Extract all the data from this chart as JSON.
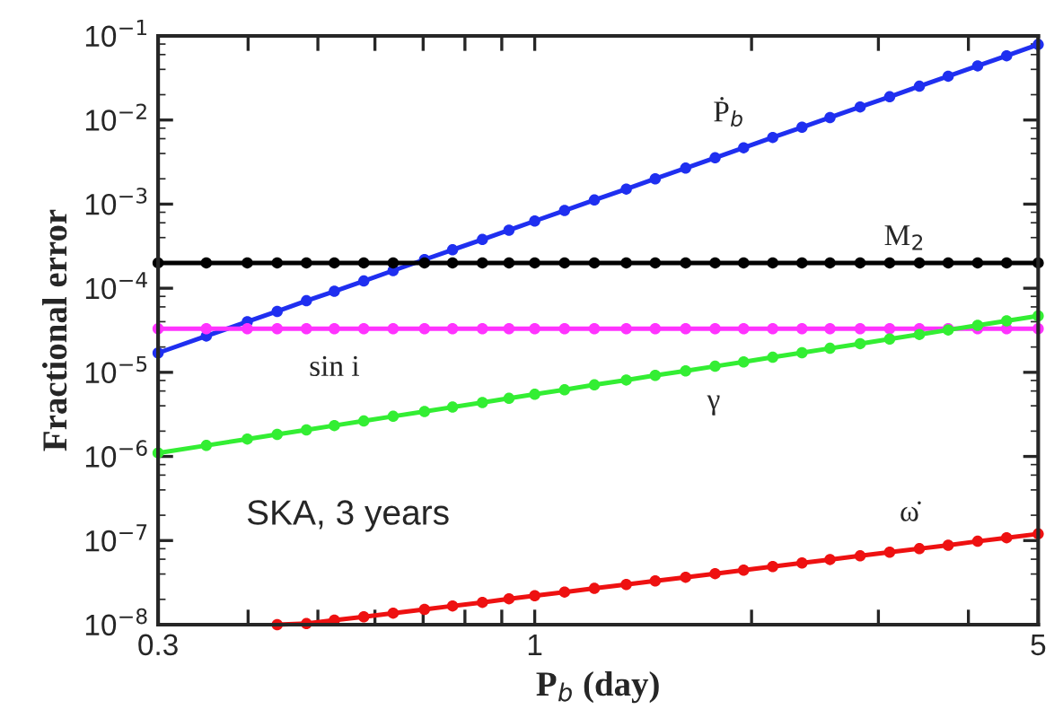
{
  "chart_data": {
    "type": "line",
    "xlabel": "P$_{b}$ (day)",
    "ylabel": "Fractional error",
    "log": "xy",
    "grid": false,
    "legend": false,
    "marker": "circle",
    "line_style": "solid",
    "x": [
      0.3,
      0.35,
      0.399,
      0.439,
      0.482,
      0.527,
      0.579,
      0.636,
      0.703,
      0.769,
      0.846,
      0.921,
      1.0,
      1.1,
      1.21,
      1.34,
      1.47,
      1.62,
      1.78,
      1.95,
      2.14,
      2.35,
      2.57,
      2.83,
      3.11,
      3.42,
      3.75,
      4.12,
      4.52,
      5.0
    ],
    "xlim": [
      0.3,
      5
    ],
    "xticks": [
      0.3,
      {
        "value": 0.4,
        "label": null
      },
      {
        "value": 0.5,
        "label": null
      },
      {
        "value": 0.6,
        "label": null
      },
      {
        "value": 0.7,
        "label": null
      },
      {
        "value": 0.8,
        "label": null
      },
      {
        "value": 0.9,
        "label": null
      },
      1,
      {
        "value": 2,
        "label": null
      },
      {
        "value": 3,
        "label": null
      },
      {
        "value": 4,
        "label": null
      },
      5
    ],
    "ylim": [
      1e-08,
      0.1
    ],
    "yticks": [
      {
        "value": 1e-08,
        "label": "10$^{−8}$"
      },
      {
        "value": 1e-07,
        "label": "10$^{−7}$"
      },
      {
        "value": 1e-06,
        "label": "10$^{−6}$"
      },
      {
        "value": 1e-05,
        "label": "10$^{−5}$"
      },
      {
        "value": 0.0001,
        "label": "10$^{−4}$"
      },
      {
        "value": 0.001,
        "label": "10$^{−3}$"
      },
      {
        "value": 0.01,
        "label": "10$^{−2}$"
      },
      {
        "value": 0.1,
        "label": "10$^{−1}$"
      }
    ],
    "series": [
      {
        "name": "Ṗ$_{b}$",
        "color": "#1f2ff0",
        "values": [
          1.7e-05,
          2.7e-05,
          4e-05,
          5.3e-05,
          7.1e-05,
          9.2e-05,
          0.000122,
          0.000162,
          0.000219,
          0.000286,
          0.00038,
          0.00049,
          0.00063,
          0.00084,
          0.00112,
          0.00151,
          0.002,
          0.00268,
          0.00355,
          0.00467,
          0.0062,
          0.0082,
          0.0107,
          0.0143,
          0.0189,
          0.0252,
          0.0332,
          0.044,
          0.058,
          0.079
        ]
      },
      {
        "name": "M$_{2}$",
        "color": "#000000",
        "values": [
          0.0002,
          0.0002,
          0.0002,
          0.0002,
          0.0002,
          0.0002,
          0.0002,
          0.0002,
          0.0002,
          0.0002,
          0.0002,
          0.0002,
          0.0002,
          0.0002,
          0.0002,
          0.0002,
          0.0002,
          0.0002,
          0.0002,
          0.0002,
          0.0002,
          0.0002,
          0.0002,
          0.0002,
          0.0002,
          0.0002,
          0.0002,
          0.0002,
          0.0002,
          0.0002
        ]
      },
      {
        "name": "sin i",
        "color": "#ff33ff",
        "values": [
          3.3e-05,
          3.3e-05,
          3.3e-05,
          3.3e-05,
          3.3e-05,
          3.3e-05,
          3.3e-05,
          3.3e-05,
          3.3e-05,
          3.3e-05,
          3.3e-05,
          3.3e-05,
          3.3e-05,
          3.3e-05,
          3.3e-05,
          3.3e-05,
          3.3e-05,
          3.3e-05,
          3.3e-05,
          3.3e-05,
          3.3e-05,
          3.3e-05,
          3.3e-05,
          3.3e-05,
          3.3e-05,
          3.3e-05,
          3.3e-05,
          3.3e-05,
          3.3e-05,
          3.3e-05
        ]
      },
      {
        "name": "γ",
        "color": "#33ee33",
        "values": [
          1.1e-06,
          1.35e-06,
          1.61e-06,
          1.83e-06,
          2.07e-06,
          2.33e-06,
          2.64e-06,
          3e-06,
          3.42e-06,
          3.86e-06,
          4.38e-06,
          4.91e-06,
          5.48e-06,
          6.2e-06,
          7.1e-06,
          8.1e-06,
          9.2e-06,
          1.04e-05,
          1.18e-05,
          1.33e-05,
          1.51e-05,
          1.71e-05,
          1.93e-05,
          2.19e-05,
          2.49e-05,
          2.82e-05,
          3.19e-05,
          3.62e-05,
          4.09e-05,
          4.69e-05
        ]
      },
      {
        "name": "ω̇",
        "color": "#ee1111",
        "x": [
          0.439,
          0.482,
          0.527,
          0.579,
          0.636,
          0.703,
          0.769,
          0.846,
          0.921,
          1.0,
          1.1,
          1.21,
          1.34,
          1.47,
          1.62,
          1.78,
          1.95,
          2.14,
          2.35,
          2.57,
          2.83,
          3.11,
          3.42,
          3.75,
          4.12,
          4.52,
          5.0
        ],
        "values": [
          1e-08,
          1.03e-08,
          1.13e-08,
          1.24e-08,
          1.37e-08,
          1.52e-08,
          1.67e-08,
          1.84e-08,
          2.03e-08,
          2.21e-08,
          2.44e-08,
          2.7e-08,
          3e-08,
          3.31e-08,
          3.66e-08,
          4.04e-08,
          4.45e-08,
          4.91e-08,
          5.41e-08,
          5.95e-08,
          6.58e-08,
          7.27e-08,
          8e-08,
          8.8e-08,
          9.8e-08,
          1.08e-07,
          1.2e-07
        ]
      }
    ],
    "annotations": [
      "SKA, 3 years"
    ]
  }
}
